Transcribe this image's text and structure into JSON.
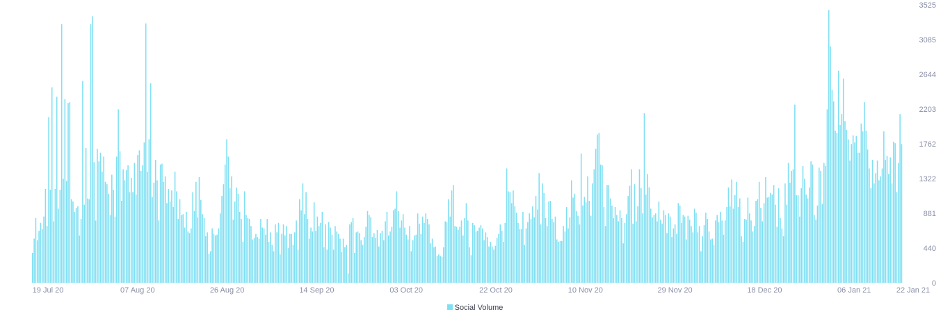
{
  "chart_data": {
    "type": "bar",
    "x_range": [
      "2020-07-18",
      "2021-01-22"
    ],
    "x_tick_labels": [
      "19 Jul 20",
      "07 Aug 20",
      "26 Aug 20",
      "14 Sep 20",
      "03 Oct 20",
      "22 Oct 20",
      "10 Nov 20",
      "29 Nov 20",
      "18 Dec 20",
      "06 Jan 21",
      "22 Jan 21"
    ],
    "y_tick_labels": [
      "3525",
      "3085",
      "2644",
      "2203",
      "1762",
      "1322",
      "881",
      "440",
      "0"
    ],
    "ylim": [
      0,
      3525
    ],
    "grid": false,
    "legend_position": "bottom-center",
    "color": "#7fe0f3",
    "series": [
      {
        "name": "Social Volume",
        "values": [
          380,
          560,
          820,
          540,
          660,
          760,
          680,
          840,
          1190,
          720,
          2100,
          1180,
          2480,
          780,
          1190,
          2360,
          940,
          1180,
          3280,
          1320,
          2330,
          1290,
          2280,
          2290,
          1060,
          1030,
          900,
          950,
          970,
          600,
          810,
          2560,
          990,
          1710,
          1070,
          1060,
          3280,
          3380,
          1530,
          790,
          1700,
          1540,
          1650,
          1410,
          1600,
          1280,
          1250,
          1130,
          860,
          1370,
          1180,
          840,
          1600,
          2200,
          1670,
          1040,
          1440,
          1300,
          1430,
          1490,
          1150,
          1330,
          1150,
          1520,
          1120,
          1620,
          1680,
          1420,
          1490,
          1780,
          3290,
          1410,
          1820,
          2530,
          1090,
          1270,
          1560,
          1300,
          790,
          1500,
          1510,
          1280,
          1350,
          1010,
          1190,
          1030,
          1170,
          960,
          1410,
          1160,
          810,
          1060,
          860,
          870,
          700,
          900,
          650,
          630,
          690,
          1150,
          910,
          1280,
          830,
          1340,
          1050,
          870,
          820,
          590,
          640,
          370,
          400,
          690,
          620,
          600,
          610,
          690,
          880,
          1100,
          1250,
          1500,
          1820,
          1600,
          1200,
          1350,
          800,
          1030,
          1210,
          1130,
          900,
          810,
          520,
          1160,
          860,
          820,
          810,
          720,
          550,
          570,
          620,
          580,
          560,
          810,
          700,
          690,
          610,
          810,
          520,
          640,
          480,
          400,
          740,
          640,
          760,
          360,
          620,
          740,
          600,
          720,
          440,
          620,
          620,
          480,
          640,
          790,
          420,
          1060,
          920,
          1260,
          870,
          1150,
          810,
          560,
          700,
          650,
          1020,
          660,
          840,
          720,
          760,
          900,
          450,
          740,
          420,
          770,
          700,
          610,
          420,
          720,
          650,
          620,
          560,
          390,
          560,
          450,
          480,
          120,
          740,
          770,
          820,
          380,
          640,
          650,
          630,
          540,
          480,
          580,
          710,
          910,
          860,
          830,
          580,
          630,
          570,
          670,
          460,
          630,
          660,
          540,
          780,
          900,
          600,
          650,
          710,
          920,
          940,
          1160,
          910,
          700,
          790,
          870,
          700,
          610,
          550,
          720,
          400,
          540,
          600,
          610,
          880,
          750,
          620,
          840,
          760,
          880,
          810,
          740,
          500,
          560,
          450,
          460,
          340,
          360,
          340,
          330,
          450,
          780,
          770,
          1060,
          840,
          1170,
          1240,
          720,
          710,
          670,
          710,
          790,
          600,
          820,
          1010,
          790,
          450,
          350,
          760,
          730,
          650,
          660,
          700,
          730,
          690,
          540,
          640,
          580,
          460,
          520,
          460,
          420,
          470,
          570,
          620,
          740,
          660,
          520,
          760,
          1450,
          1160,
          1150,
          1010,
          1170,
          970,
          890,
          760,
          680,
          680,
          900,
          480,
          690,
          770,
          880,
          810,
          970,
          830,
          1100,
          930,
          1390,
          740,
          1260,
          1140,
          820,
          720,
          1030,
          1040,
          810,
          770,
          840,
          550,
          520,
          530,
          530,
          720,
          650,
          960,
          690,
          830,
          1300,
          1080,
          1130,
          910,
          850,
          740,
          1640,
          980,
          1090,
          1020,
          1350,
          1040,
          850,
          1260,
          1440,
          1700,
          1880,
          1900,
          1500,
          1490,
          960,
          720,
          1240,
          1240,
          1070,
          980,
          820,
          960,
          860,
          780,
          920,
          820,
          500,
          760,
          870,
          1100,
          1230,
          1440,
          750,
          1250,
          780,
          970,
          1440,
          1200,
          880,
          2150,
          1120,
          1380,
          1210,
          940,
          830,
          860,
          880,
          780,
          1030,
          800,
          750,
          920,
          860,
          630,
          880,
          840,
          580,
          690,
          740,
          620,
          1010,
          980,
          760,
          860,
          840,
          550,
          850,
          800,
          720,
          640,
          940,
          890,
          640,
          720,
          400,
          590,
          730,
          890,
          810,
          650,
          550,
          560,
          480,
          790,
          860,
          770,
          900,
          790,
          610,
          790,
          960,
          1210,
          970,
          1310,
          940,
          1110,
          1280,
          960,
          1070,
          590,
          520,
          810,
          800,
          1080,
          880,
          790,
          650,
          720,
          1040,
          1060,
          1280,
          950,
          780,
          1010,
          1340,
          1080,
          1090,
          1140,
          1120,
          1240,
          990,
          710,
          1200,
          820,
          690,
          590,
          1260,
          990,
          1520,
          1270,
          1420,
          1440,
          2260,
          1110,
          1110,
          840,
          1200,
          1480,
          1320,
          1120,
          1070,
          1210,
          1540,
          1500,
          860,
          800,
          980,
          1460,
          1420,
          1000,
          1520,
          1480,
          2200,
          3460,
          3000,
          2450,
          2300,
          1930,
          1900,
          2690,
          2000,
          2140,
          2590,
          2050,
          1940,
          1820,
          1550,
          1760,
          1870,
          1780,
          1860,
          1650,
          1650,
          2020,
          1920,
          2290,
          1930,
          1690,
          1450,
          1200,
          1560,
          1260,
          1390,
          1550,
          1300,
          1350,
          1450,
          1920,
          1560,
          1610,
          1380,
          1590,
          1260,
          1790,
          1770,
          1150,
          1520,
          2140,
          1760
        ]
      }
    ]
  }
}
